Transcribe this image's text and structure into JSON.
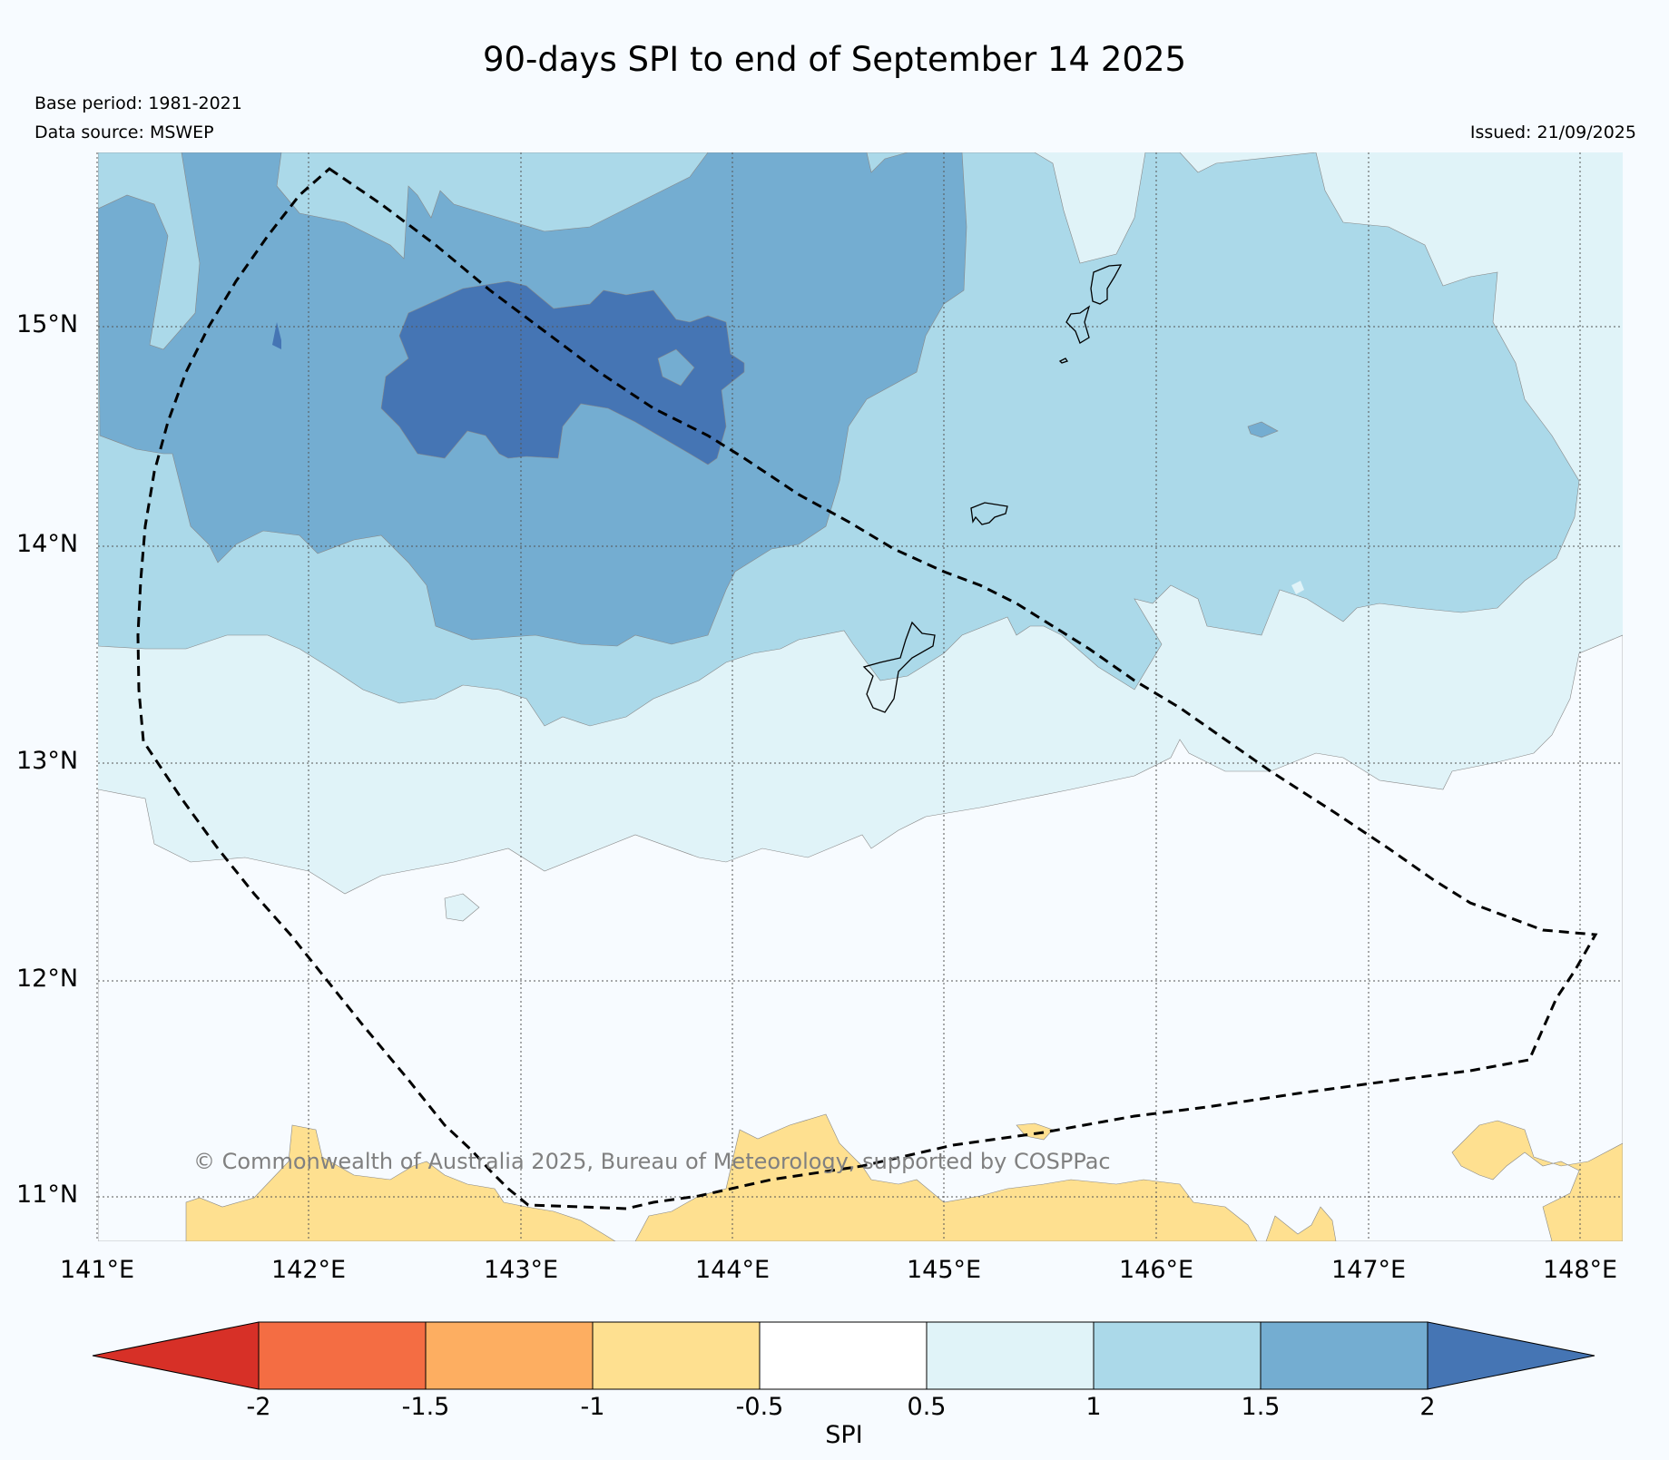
{
  "title": "90-days SPI to end of September 14 2025",
  "base_period": "Base period: 1981-2021",
  "data_source": "Data source: MSWEP",
  "issued": "Issued: 21/09/2025",
  "copyright": "© Commonwealth of Australia 2025, Bureau of Meteorology, supported by COSPPac",
  "lon_ticks": [
    "141°E",
    "142°E",
    "143°E",
    "144°E",
    "145°E",
    "146°E",
    "147°E",
    "148°E"
  ],
  "lat_ticks": [
    "15°N",
    "14°N",
    "13°N",
    "12°N",
    "11°N"
  ],
  "colorbar": {
    "title": "SPI",
    "tick_labels": [
      "-2",
      "-1.5",
      "-1",
      "-0.5",
      "0.5",
      "1",
      "1.5",
      "2"
    ],
    "colors": {
      "lt_-2": "#d73027",
      "-2_-1.5": "#f46d43",
      "-1.5_-1": "#fdae61",
      "-1_-0.5": "#fee090",
      "-0.5_0.5": "#ffffff",
      "0.5_1": "#e0f3f8",
      "1_1.5": "#abd9e9",
      "1.5_2": "#74add1",
      "gt_2": "#4575b4"
    }
  }
}
